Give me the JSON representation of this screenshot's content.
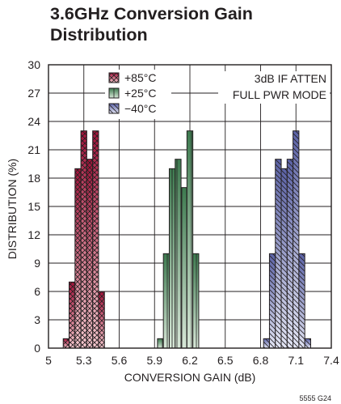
{
  "chart_data": {
    "type": "bar",
    "title_lines": [
      "3.6GHz Conversion Gain",
      "Distribution"
    ],
    "xlabel": "CONVERSION GAIN (dB)",
    "ylabel": "DISTRIBUTION (%)",
    "xlim": [
      5,
      7.4
    ],
    "ylim": [
      0,
      30
    ],
    "xticks": [
      "5",
      "5.3",
      "5.6",
      "5.9",
      "6.2",
      "6.5",
      "6.8",
      "7.1",
      "7.4"
    ],
    "yticks": [
      "0",
      "3",
      "6",
      "9",
      "12",
      "15",
      "18",
      "21",
      "24",
      "27",
      "30"
    ],
    "grid": true,
    "legend_position": "top-center",
    "annotations": [
      "3dB IF ATTEN",
      "FULL PWR MODE"
    ],
    "figure_id": "5555 G24",
    "bin_width": 0.05,
    "series": [
      {
        "name": "+85°C",
        "color": "#a3123a",
        "color_light": "#f7c9cf",
        "pattern": "crosshatch",
        "x": [
          5.15,
          5.2,
          5.25,
          5.3,
          5.35,
          5.4,
          5.45
        ],
        "values": [
          1,
          7,
          19,
          23,
          20,
          23,
          6
        ]
      },
      {
        "name": "+25°C",
        "color": "#3d7a4f",
        "color_light": "#d8e8d8",
        "pattern": "vertical",
        "x": [
          5.95,
          6.0,
          6.05,
          6.1,
          6.15,
          6.2,
          6.25
        ],
        "values": [
          1,
          10,
          19,
          20,
          17,
          23,
          10
        ]
      },
      {
        "name": "−40°C",
        "color": "#5b62a6",
        "color_light": "#e3e5f4",
        "pattern": "diagonal",
        "x": [
          6.85,
          6.9,
          6.95,
          7.0,
          7.05,
          7.1,
          7.15,
          7.2
        ],
        "values": [
          1,
          10,
          20,
          19,
          20,
          23,
          10,
          1
        ]
      }
    ]
  }
}
